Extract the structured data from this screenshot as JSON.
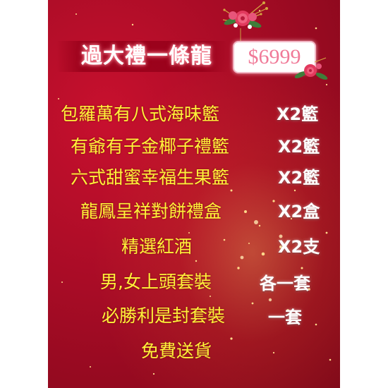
{
  "poster": {
    "title": "過大禮一條龍",
    "price": "$6999",
    "items": [
      {
        "name": "包羅萬有八式海味籃",
        "qty": "X2籃"
      },
      {
        "name": "有爺有子金椰子禮籃",
        "qty": "X2籃"
      },
      {
        "name": "六式甜蜜幸福生果籃",
        "qty": "X2籃"
      },
      {
        "name": "龍鳳呈祥對餅禮盒",
        "qty": "X2盒"
      },
      {
        "name": "精選紅酒",
        "qty": "X2支"
      },
      {
        "name": "男,女上頭套裝",
        "qty": "各一套"
      },
      {
        "name": "必勝利是封套裝",
        "qty": "一套"
      }
    ],
    "footer": "免費送貨"
  },
  "icons": {
    "top_flower": "rose-bouquet-icon",
    "price_flower": "rose-corner-icon"
  },
  "colors": {
    "background": "#b00e28",
    "item_text": "#fff23a",
    "quantity_text": "#ffffff",
    "price_text": "#f07a98"
  }
}
